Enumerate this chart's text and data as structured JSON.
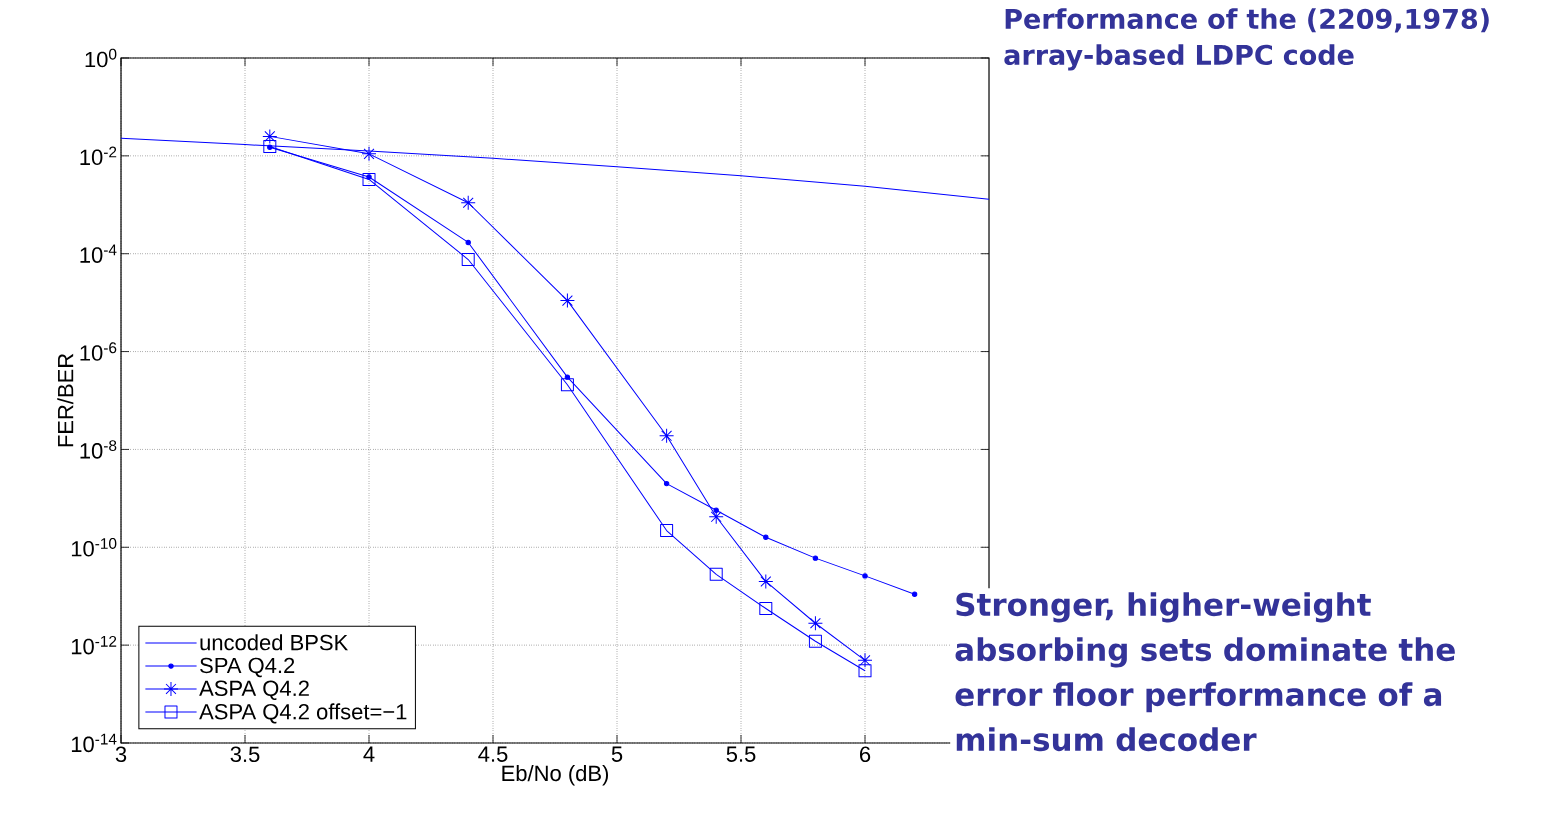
{
  "chart_data": {
    "type": "line",
    "title": "Performance of the (2209,1978) array-based LDPC code",
    "xlabel": "Eb/No (dB)",
    "ylabel": "FER/BER",
    "annotations": [
      "Stronger, higher-weight absorbing sets dominate the error floor performance of a min-sum decoder"
    ],
    "x": [
      3.6,
      4.0,
      4.4,
      4.8,
      5.2,
      5.4,
      5.6,
      5.8,
      6.0
    ],
    "series": [
      {
        "name": "uncoded BPSK",
        "color": "#0000ff",
        "marker": "none",
        "x": [
          3,
          3.5,
          4,
          4.5,
          5,
          5.5,
          6,
          6.5
        ],
        "values": [
          0.023,
          0.017,
          0.0125,
          0.0089,
          0.006,
          0.0039,
          0.0024,
          0.0013
        ]
      },
      {
        "name": "SPA Q4.2",
        "color": "#0000ff",
        "marker": "circle",
        "x": [
          3.6,
          4.0,
          4.4,
          4.8,
          5.2,
          5.4,
          5.6,
          5.8,
          6.0,
          6.2
        ],
        "values": [
          0.015,
          0.0037,
          0.00017,
          3e-07,
          2e-09,
          5.7e-10,
          1.6e-10,
          6e-11,
          2.6e-11,
          1.1e-11
        ]
      },
      {
        "name": "ASPA Q4.2",
        "color": "#0000ff",
        "marker": "cross",
        "values": [
          0.025,
          0.011,
          0.0011,
          1.1e-05,
          1.9e-08,
          4.2e-10,
          2e-11,
          2.8e-12,
          4.9e-13
        ]
      },
      {
        "name": "ASPA Q4.2 offset=−1",
        "color": "#0000ff",
        "marker": "square",
        "values": [
          0.0155,
          0.0033,
          7.6e-05,
          2.1e-07,
          2.2e-10,
          2.8e-11,
          5.6e-12,
          1.2e-12,
          3e-13
        ]
      }
    ],
    "log": "y",
    "grid": true,
    "legend": "bottom left",
    "line_style": "solid",
    "xlim": [
      3,
      6.5
    ],
    "xticks": [
      3,
      3.5,
      4,
      4.5,
      5,
      5.5,
      6
    ],
    "ylim": [
      1e-14,
      1
    ],
    "yticks": [
      {
        "value": 1,
        "label": "10$^{0}$"
      },
      {
        "value": 0.01,
        "label": "10$^{-2}$"
      },
      {
        "value": 0.0001,
        "label": "10$^{-4}$"
      },
      {
        "value": 1e-06,
        "label": "10$^{-6}$"
      },
      {
        "value": 1e-08,
        "label": "10$^{-8}$"
      },
      {
        "value": 1e-10,
        "label": "10$^{-10}$"
      },
      {
        "value": 1e-12,
        "label": "10$^{-12}$"
      },
      {
        "value": 1e-14,
        "label": "10$^{-14}$"
      }
    ]
  }
}
